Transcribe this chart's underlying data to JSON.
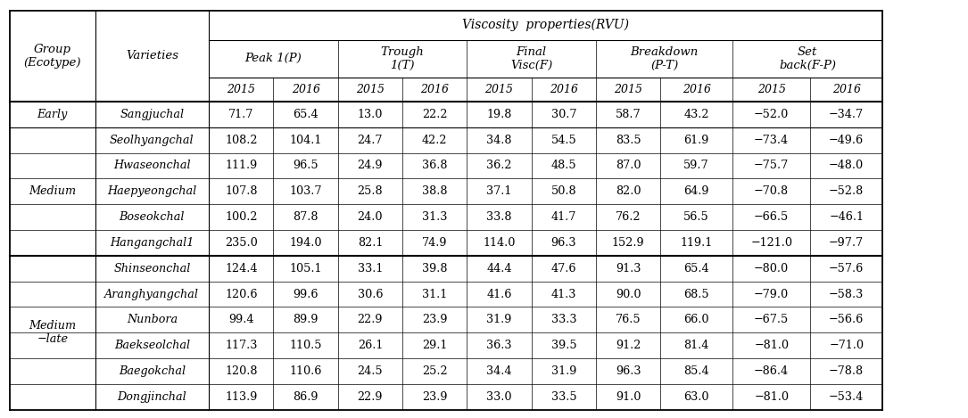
{
  "title": "Viscosity  properties(RVU)",
  "groups": [
    {
      "name": "Early",
      "rows": [
        {
          "variety": "Sangjuchal",
          "values": [
            "71.7",
            "65.4",
            "13.0",
            "22.2",
            "19.8",
            "30.7",
            "58.7",
            "43.2",
            "−52.0",
            "−34.7"
          ]
        }
      ]
    },
    {
      "name": "Medium",
      "rows": [
        {
          "variety": "Seolhyangchal",
          "values": [
            "108.2",
            "104.1",
            "24.7",
            "42.2",
            "34.8",
            "54.5",
            "83.5",
            "61.9",
            "−73.4",
            "−49.6"
          ]
        },
        {
          "variety": "Hwaseonchal",
          "values": [
            "111.9",
            "96.5",
            "24.9",
            "36.8",
            "36.2",
            "48.5",
            "87.0",
            "59.7",
            "−75.7",
            "−48.0"
          ]
        },
        {
          "variety": "Haepyeongchal",
          "values": [
            "107.8",
            "103.7",
            "25.8",
            "38.8",
            "37.1",
            "50.8",
            "82.0",
            "64.9",
            "−70.8",
            "−52.8"
          ]
        },
        {
          "variety": "Boseokchal",
          "values": [
            "100.2",
            "87.8",
            "24.0",
            "31.3",
            "33.8",
            "41.7",
            "76.2",
            "56.5",
            "−66.5",
            "−46.1"
          ]
        },
        {
          "variety": "Hangangchal1",
          "values": [
            "235.0",
            "194.0",
            "82.1",
            "74.9",
            "114.0",
            "96.3",
            "152.9",
            "119.1",
            "−121.0",
            "−97.7"
          ]
        }
      ]
    },
    {
      "name": "Medium\n−late",
      "rows": [
        {
          "variety": "Shinseonchal",
          "values": [
            "124.4",
            "105.1",
            "33.1",
            "39.8",
            "44.4",
            "47.6",
            "91.3",
            "65.4",
            "−80.0",
            "−57.6"
          ]
        },
        {
          "variety": "Aranghyangchal",
          "values": [
            "120.6",
            "99.6",
            "30.6",
            "31.1",
            "41.6",
            "41.3",
            "90.0",
            "68.5",
            "−79.0",
            "−58.3"
          ]
        },
        {
          "variety": "Nunbora",
          "values": [
            "99.4",
            "89.9",
            "22.9",
            "23.9",
            "31.9",
            "33.3",
            "76.5",
            "66.0",
            "−67.5",
            "−56.6"
          ]
        },
        {
          "variety": "Baekseolchal",
          "values": [
            "117.3",
            "110.5",
            "26.1",
            "29.1",
            "36.3",
            "39.5",
            "91.2",
            "81.4",
            "−81.0",
            "−71.0"
          ]
        },
        {
          "variety": "Baegokchal",
          "values": [
            "120.8",
            "110.6",
            "24.5",
            "25.2",
            "34.4",
            "31.9",
            "96.3",
            "85.4",
            "−86.4",
            "−78.8"
          ]
        },
        {
          "variety": "Dongjinchal",
          "values": [
            "113.9",
            "86.9",
            "22.9",
            "23.9",
            "33.0",
            "33.5",
            "91.0",
            "63.0",
            "−81.0",
            "−53.4"
          ]
        }
      ]
    }
  ],
  "bg_color": "#ffffff",
  "text_color": "#000000",
  "font_size": 9.2,
  "header_font_size": 9.5
}
